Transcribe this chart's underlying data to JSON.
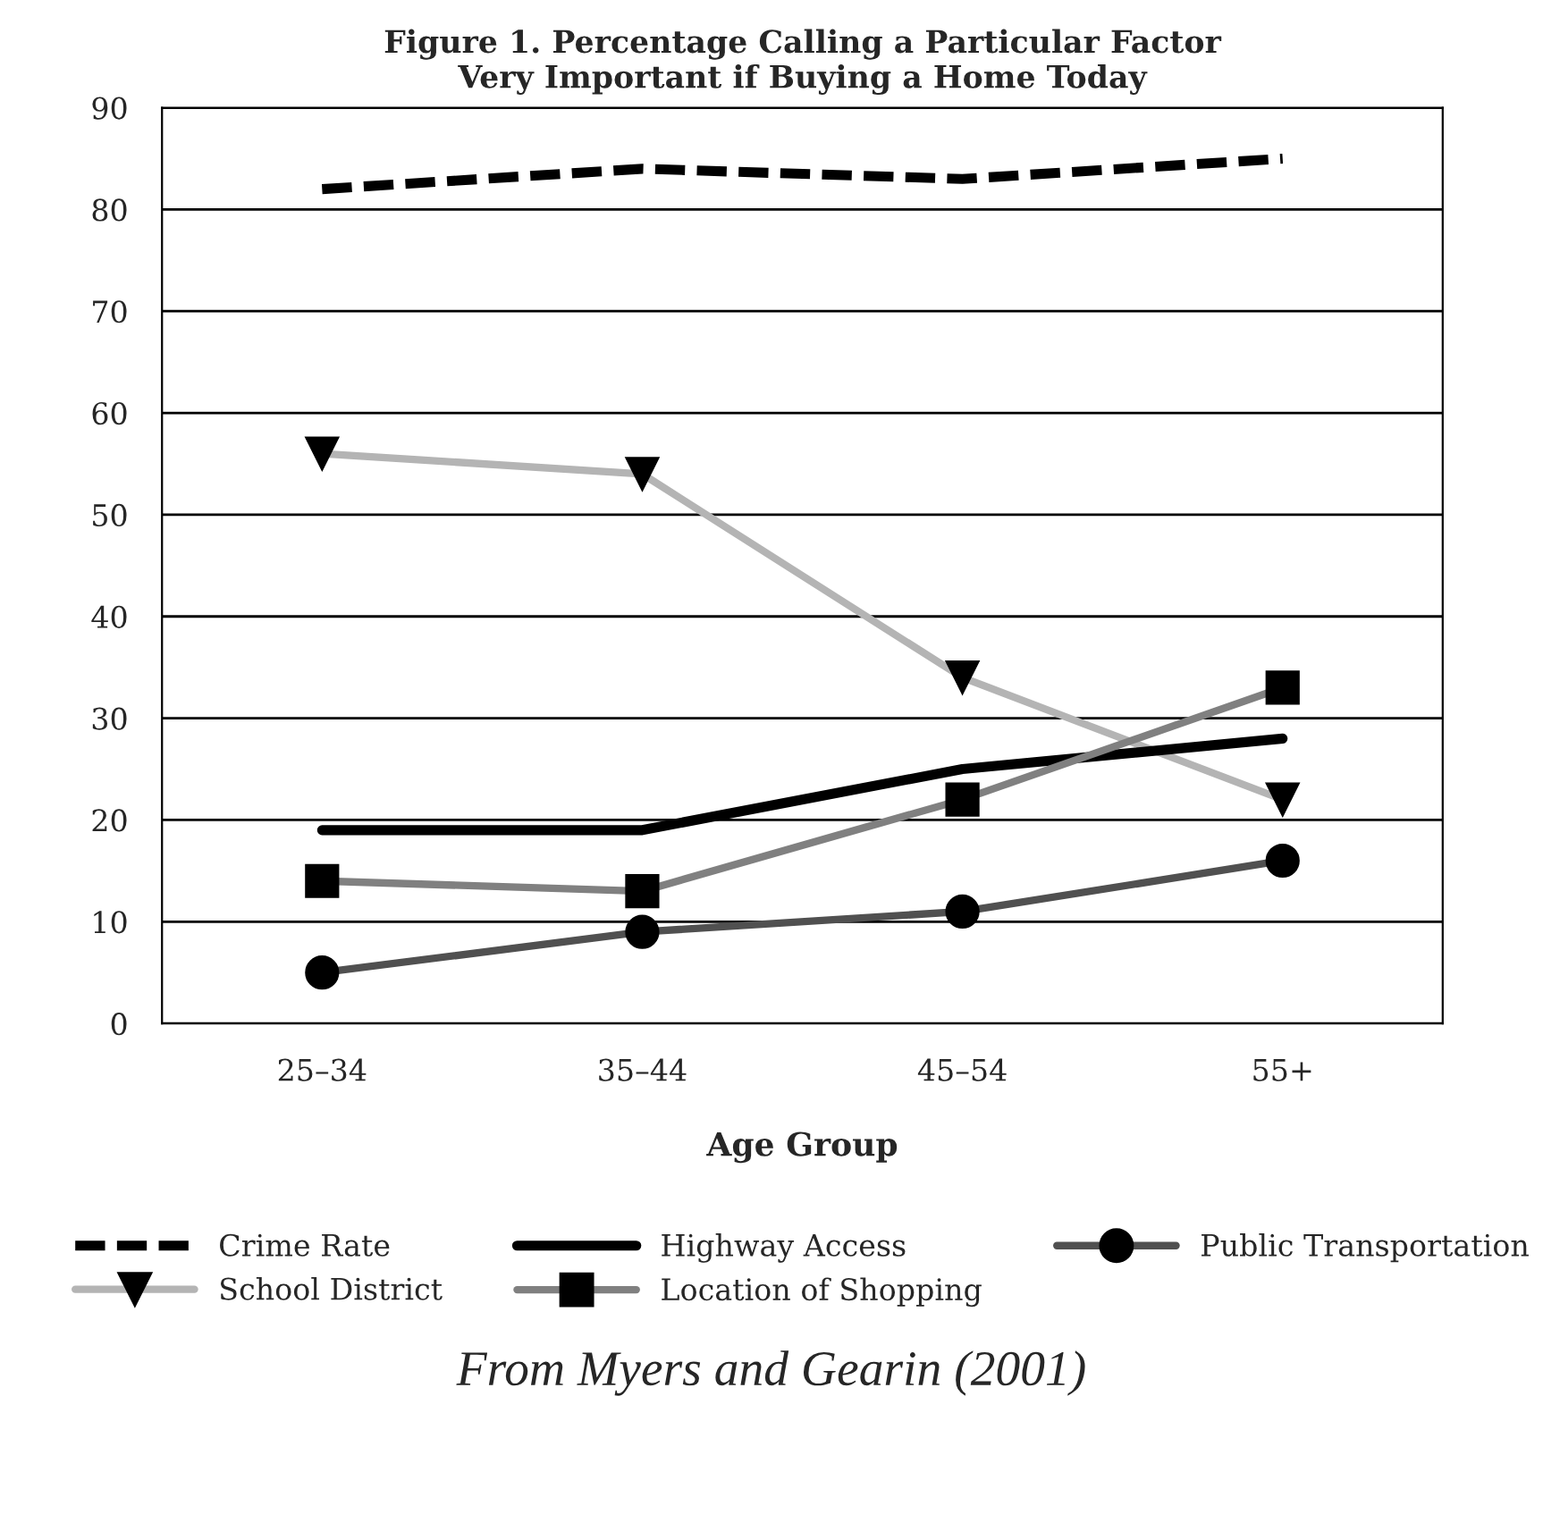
{
  "chart_data": {
    "type": "line",
    "title": "Figure 1. Percentage Calling a Particular Factor\nVery Important if Buying a Home Today",
    "xlabel": "Age Group",
    "categories": [
      "25–34",
      "35–44",
      "45–54",
      "55+"
    ],
    "series": [
      {
        "name": "Crime Rate",
        "color": "#000000",
        "values": [
          82,
          84,
          83,
          85
        ],
        "line_style": "dashed",
        "marker": "none"
      },
      {
        "name": "School District",
        "color": "#b4b4b4",
        "values": [
          56,
          54,
          34,
          22
        ],
        "line_style": "solid",
        "marker": "triangle"
      },
      {
        "name": "Highway Access",
        "color": "#000000",
        "values": [
          19,
          19,
          25,
          28
        ],
        "line_style": "solid",
        "marker": "none"
      },
      {
        "name": "Location of Shopping",
        "color": "#808080",
        "values": [
          14,
          13,
          22,
          33
        ],
        "line_style": "solid",
        "marker": "square"
      },
      {
        "name": "Public Transportation",
        "color": "#505050",
        "values": [
          5,
          9,
          11,
          16
        ],
        "line_style": "solid",
        "marker": "circle"
      }
    ],
    "ylim": [
      0,
      90
    ],
    "yticks": [
      0,
      10,
      20,
      30,
      40,
      50,
      60,
      70,
      80,
      90
    ],
    "grid": "y",
    "legend": "bottom",
    "annotations": [
      "From Myers and Gearin (2001)"
    ]
  }
}
